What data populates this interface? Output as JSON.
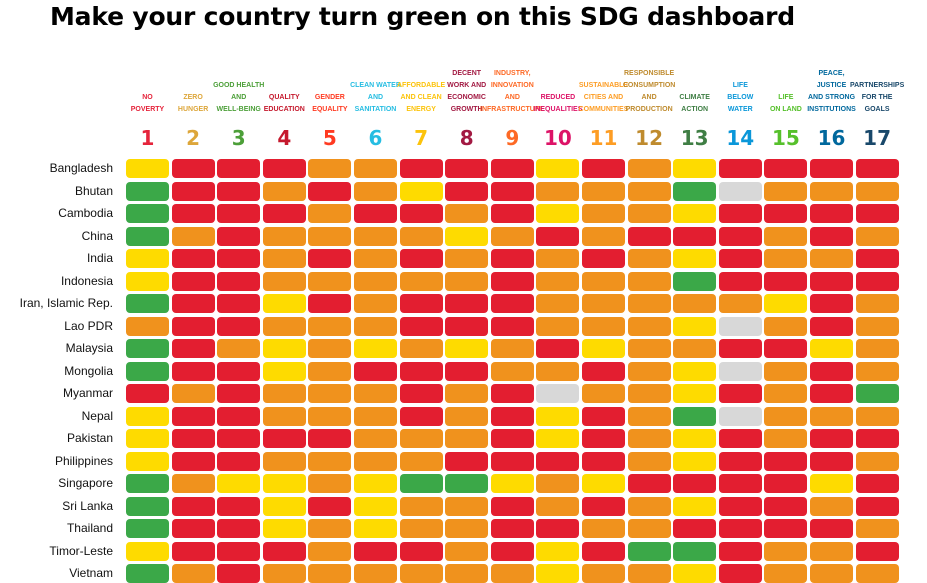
{
  "title": "Make your country turn green on this SDG dashboard",
  "colors": {
    "red": "#e31e30",
    "orange": "#f0921d",
    "yellow": "#fedb00",
    "green": "#3ba848",
    "grey": "#d8d8d8"
  },
  "chart_data": {
    "type": "heatmap",
    "title": "Make your country turn green on this SDG dashboard",
    "columns": [
      {
        "num": "1",
        "label": "NO\nPOVERTY",
        "color": "#e5243b"
      },
      {
        "num": "2",
        "label": "ZERO\nHUNGER",
        "color": "#dda63a"
      },
      {
        "num": "3",
        "label": "GOOD HEALTH\nAND\nWELL-BEING",
        "color": "#4c9f38"
      },
      {
        "num": "4",
        "label": "QUALITY\nEDUCATION",
        "color": "#c5192d"
      },
      {
        "num": "5",
        "label": "GENDER\nEQUALITY",
        "color": "#ff3a21"
      },
      {
        "num": "6",
        "label": "CLEAN WATER\nAND\nSANITATION",
        "color": "#26bde2"
      },
      {
        "num": "7",
        "label": "AFFORDABLE\nAND CLEAN\nENERGY",
        "color": "#fcc30b"
      },
      {
        "num": "8",
        "label": "DECENT\nWORK AND\nECONOMIC\nGROWTH",
        "color": "#a21942"
      },
      {
        "num": "9",
        "label": "INDUSTRY,\nINNOVATION\nAND\nINFRASTRUCTURE",
        "color": "#fd6925"
      },
      {
        "num": "10",
        "label": "REDUCED\nINEQUALITIES",
        "color": "#dd1367"
      },
      {
        "num": "11",
        "label": "SUSTAINABLE\nCITIES AND\nCOMMUNITIES",
        "color": "#fd9d24"
      },
      {
        "num": "12",
        "label": "RESPONSIBLE\nCONSUMPTION\nAND\nPRODUCTION",
        "color": "#bf8b2e"
      },
      {
        "num": "13",
        "label": "CLIMATE\nACTION",
        "color": "#3f7e44"
      },
      {
        "num": "14",
        "label": "LIFE\nBELOW\nWATER",
        "color": "#0a97d9"
      },
      {
        "num": "15",
        "label": "LIFE\nON LAND",
        "color": "#56c02b"
      },
      {
        "num": "16",
        "label": "PEACE,\nJUSTICE\nAND STRONG\nINSTITUTIONS",
        "color": "#00689d"
      },
      {
        "num": "17",
        "label": "PARTNERSHIPS\nFOR THE\nGOALS",
        "color": "#19486a"
      }
    ],
    "rows": [
      {
        "country": "Bangladesh",
        "ratings": [
          "yellow",
          "red",
          "red",
          "red",
          "orange",
          "orange",
          "red",
          "red",
          "red",
          "yellow",
          "red",
          "orange",
          "yellow",
          "red",
          "red",
          "red",
          "red"
        ]
      },
      {
        "country": "Bhutan",
        "ratings": [
          "green",
          "red",
          "red",
          "orange",
          "red",
          "orange",
          "yellow",
          "red",
          "red",
          "orange",
          "orange",
          "orange",
          "green",
          "grey",
          "orange",
          "orange",
          "orange"
        ]
      },
      {
        "country": "Cambodia",
        "ratings": [
          "green",
          "red",
          "red",
          "red",
          "orange",
          "red",
          "red",
          "orange",
          "red",
          "yellow",
          "orange",
          "orange",
          "yellow",
          "red",
          "red",
          "red",
          "red"
        ]
      },
      {
        "country": "China",
        "ratings": [
          "green",
          "orange",
          "red",
          "orange",
          "orange",
          "orange",
          "orange",
          "yellow",
          "orange",
          "red",
          "orange",
          "red",
          "red",
          "red",
          "orange",
          "red",
          "orange"
        ]
      },
      {
        "country": "India",
        "ratings": [
          "yellow",
          "red",
          "red",
          "orange",
          "red",
          "orange",
          "red",
          "orange",
          "red",
          "orange",
          "red",
          "orange",
          "yellow",
          "red",
          "orange",
          "orange",
          "red"
        ]
      },
      {
        "country": "Indonesia",
        "ratings": [
          "yellow",
          "red",
          "red",
          "orange",
          "orange",
          "orange",
          "orange",
          "orange",
          "red",
          "orange",
          "orange",
          "orange",
          "green",
          "red",
          "red",
          "red",
          "red"
        ]
      },
      {
        "country": "Iran, Islamic Rep.",
        "ratings": [
          "green",
          "red",
          "red",
          "yellow",
          "red",
          "orange",
          "red",
          "red",
          "red",
          "orange",
          "orange",
          "orange",
          "orange",
          "orange",
          "yellow",
          "red",
          "orange"
        ]
      },
      {
        "country": "Lao PDR",
        "ratings": [
          "orange",
          "red",
          "red",
          "orange",
          "orange",
          "orange",
          "red",
          "red",
          "red",
          "orange",
          "orange",
          "orange",
          "yellow",
          "grey",
          "orange",
          "red",
          "orange"
        ]
      },
      {
        "country": "Malaysia",
        "ratings": [
          "green",
          "red",
          "orange",
          "yellow",
          "orange",
          "yellow",
          "orange",
          "yellow",
          "orange",
          "red",
          "yellow",
          "orange",
          "orange",
          "red",
          "red",
          "yellow",
          "orange"
        ]
      },
      {
        "country": "Mongolia",
        "ratings": [
          "green",
          "red",
          "red",
          "yellow",
          "orange",
          "red",
          "red",
          "red",
          "orange",
          "orange",
          "red",
          "orange",
          "yellow",
          "grey",
          "orange",
          "red",
          "orange"
        ]
      },
      {
        "country": "Myanmar",
        "ratings": [
          "red",
          "orange",
          "red",
          "orange",
          "orange",
          "orange",
          "red",
          "orange",
          "red",
          "grey",
          "orange",
          "orange",
          "yellow",
          "red",
          "orange",
          "red",
          "green"
        ]
      },
      {
        "country": "Nepal",
        "ratings": [
          "yellow",
          "red",
          "red",
          "orange",
          "orange",
          "orange",
          "red",
          "orange",
          "red",
          "yellow",
          "red",
          "orange",
          "green",
          "grey",
          "orange",
          "orange",
          "orange"
        ]
      },
      {
        "country": "Pakistan",
        "ratings": [
          "yellow",
          "red",
          "red",
          "red",
          "red",
          "orange",
          "orange",
          "orange",
          "red",
          "yellow",
          "red",
          "orange",
          "yellow",
          "red",
          "orange",
          "red",
          "red"
        ]
      },
      {
        "country": "Philippines",
        "ratings": [
          "yellow",
          "red",
          "red",
          "orange",
          "orange",
          "orange",
          "orange",
          "red",
          "red",
          "red",
          "red",
          "orange",
          "yellow",
          "red",
          "red",
          "red",
          "orange"
        ]
      },
      {
        "country": "Singapore",
        "ratings": [
          "green",
          "orange",
          "yellow",
          "yellow",
          "orange",
          "yellow",
          "green",
          "green",
          "yellow",
          "orange",
          "yellow",
          "red",
          "red",
          "red",
          "red",
          "yellow",
          "red"
        ]
      },
      {
        "country": "Sri Lanka",
        "ratings": [
          "green",
          "red",
          "red",
          "yellow",
          "red",
          "yellow",
          "orange",
          "orange",
          "red",
          "orange",
          "red",
          "orange",
          "yellow",
          "red",
          "red",
          "orange",
          "red"
        ]
      },
      {
        "country": "Thailand",
        "ratings": [
          "green",
          "red",
          "red",
          "yellow",
          "orange",
          "yellow",
          "orange",
          "orange",
          "red",
          "red",
          "orange",
          "orange",
          "red",
          "red",
          "red",
          "red",
          "orange"
        ]
      },
      {
        "country": "Timor-Leste",
        "ratings": [
          "yellow",
          "red",
          "red",
          "red",
          "orange",
          "red",
          "red",
          "orange",
          "red",
          "yellow",
          "red",
          "green",
          "green",
          "red",
          "orange",
          "orange",
          "red"
        ]
      },
      {
        "country": "Vietnam",
        "ratings": [
          "green",
          "orange",
          "red",
          "orange",
          "orange",
          "orange",
          "orange",
          "orange",
          "orange",
          "yellow",
          "orange",
          "orange",
          "yellow",
          "red",
          "orange",
          "orange",
          "orange"
        ]
      }
    ]
  }
}
